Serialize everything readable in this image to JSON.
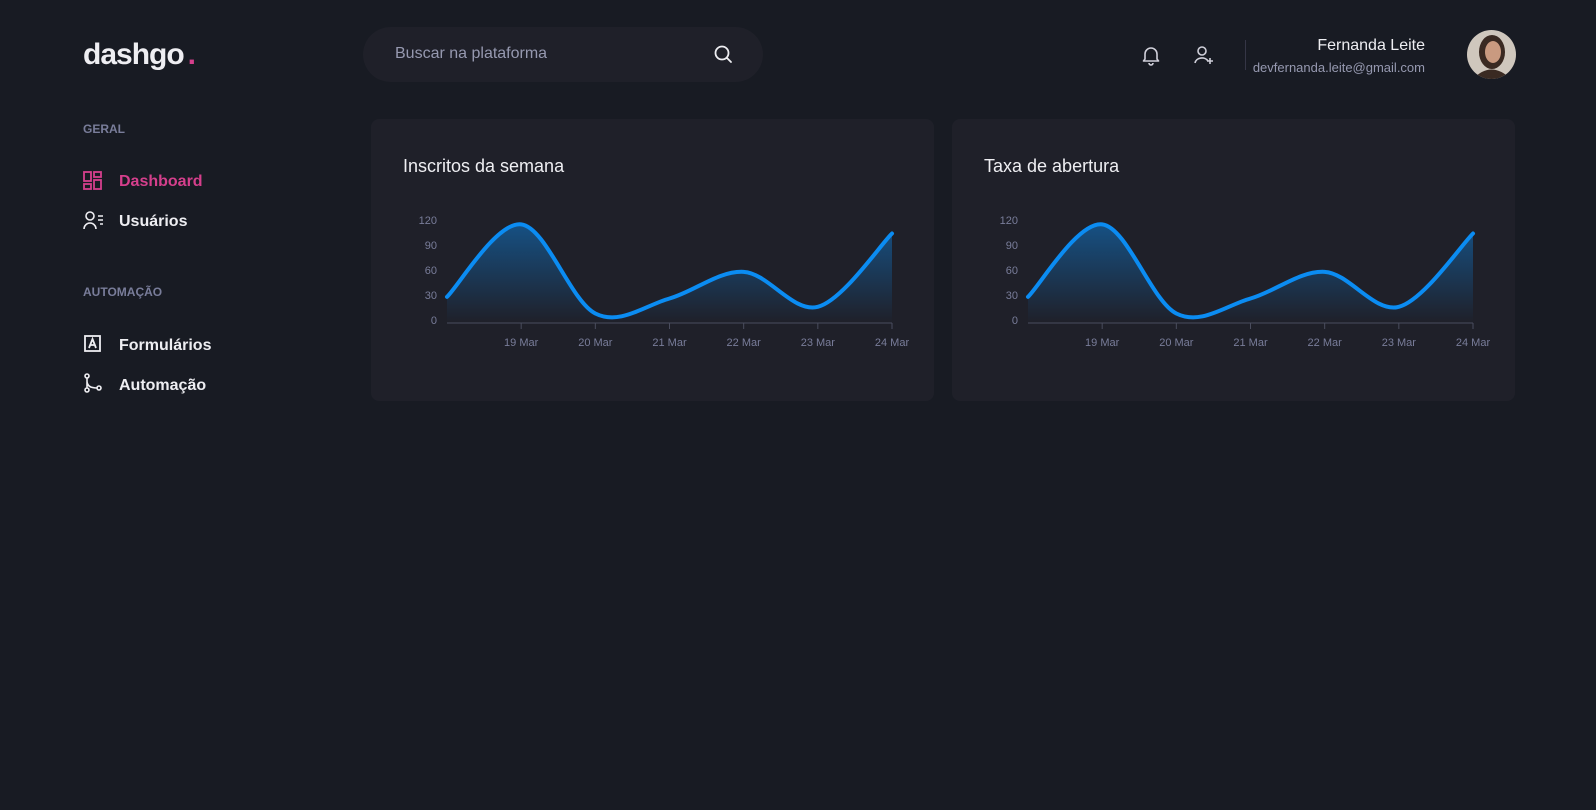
{
  "logo": {
    "text": "dashgo",
    "dot": "."
  },
  "search": {
    "placeholder": "Buscar na plataforma"
  },
  "user": {
    "name": "Fernanda Leite",
    "email": "devfernanda.leite@gmail.com"
  },
  "sidebar": {
    "sections": [
      {
        "title": "GERAL",
        "links": [
          "Dashboard",
          "Usuários"
        ]
      },
      {
        "title": "AUTOMAÇÃO",
        "links": [
          "Formulários",
          "Automação"
        ]
      }
    ]
  },
  "chart_data": [
    {
      "type": "area",
      "title": "Inscritos da semana",
      "categories": [
        null,
        "19 Mar",
        "20 Mar",
        "21 Mar",
        "22 Mar",
        "23 Mar",
        "24 Mar"
      ],
      "values": [
        29,
        116,
        9,
        27,
        59,
        17,
        105
      ],
      "color": "#0b8cf2",
      "ylim": [
        0,
        120
      ],
      "yticks": [
        0,
        30,
        60,
        90,
        120
      ]
    },
    {
      "type": "area",
      "title": "Taxa de abertura",
      "categories": [
        null,
        "19 Mar",
        "20 Mar",
        "21 Mar",
        "22 Mar",
        "23 Mar",
        "24 Mar"
      ],
      "values": [
        29,
        116,
        9,
        27,
        59,
        17,
        105
      ],
      "color": "#0b8cf2",
      "ylim": [
        0,
        120
      ],
      "yticks": [
        0,
        30,
        60,
        90,
        120
      ]
    }
  ]
}
